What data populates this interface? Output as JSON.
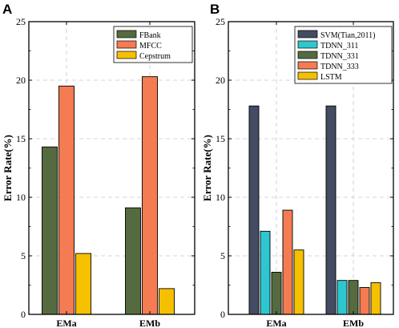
{
  "chart_data": [
    {
      "panel": "A",
      "type": "bar",
      "categories": [
        "EMa",
        "EMb"
      ],
      "series": [
        {
          "name": "FBank",
          "values": [
            14.3,
            9.1
          ],
          "color": "#556b3f"
        },
        {
          "name": "MFCC",
          "values": [
            19.5,
            20.3
          ],
          "color": "#f47b52"
        },
        {
          "name": "Cepstrum",
          "values": [
            5.2,
            2.2
          ],
          "color": "#f5c000"
        }
      ],
      "ylabel": "Error Rate(%)",
      "ylim": [
        0,
        25
      ],
      "yticks": [
        0,
        5,
        10,
        15,
        20,
        25
      ],
      "grid": true,
      "legend_position": "top-right"
    },
    {
      "panel": "B",
      "type": "bar",
      "categories": [
        "EMa",
        "EMb"
      ],
      "series": [
        {
          "name": "SVM(Tian,2011)",
          "values": [
            17.8,
            17.8
          ],
          "color": "#434c62"
        },
        {
          "name": "TDNN_311",
          "values": [
            7.1,
            2.9
          ],
          "color": "#2ec7d0"
        },
        {
          "name": "TDNN_331",
          "values": [
            3.6,
            2.9
          ],
          "color": "#556b3f"
        },
        {
          "name": "TDNN_333",
          "values": [
            8.9,
            2.3
          ],
          "color": "#f47b52"
        },
        {
          "name": "LSTM",
          "values": [
            5.5,
            2.7
          ],
          "color": "#f5c000"
        }
      ],
      "ylabel": "Error Rate(%)",
      "ylim": [
        0,
        25
      ],
      "yticks": [
        0,
        5,
        10,
        15,
        20,
        25
      ],
      "grid": true,
      "legend_position": "top-right"
    }
  ]
}
